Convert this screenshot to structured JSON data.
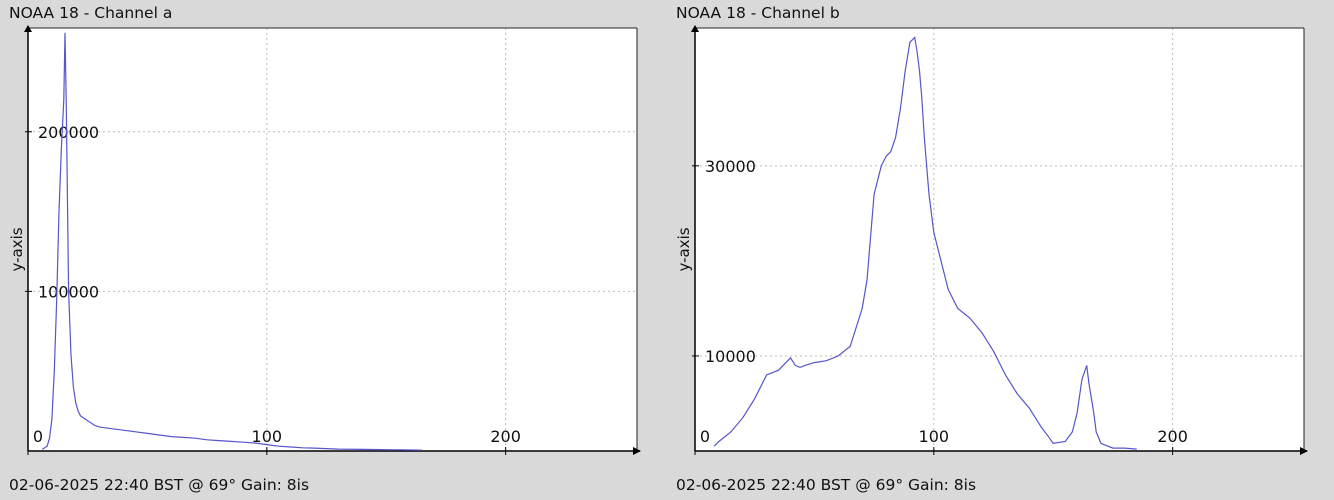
{
  "panels": [
    {
      "title": "NOAA 18 - Channel a",
      "footer": "02-06-2025 22:40 BST @ 69° Gain: 8is"
    },
    {
      "title": "NOAA 18 - Channel b",
      "footer": "02-06-2025 22:40 BST @ 69° Gain: 8is"
    }
  ],
  "chart_data": [
    {
      "type": "line",
      "title": "NOAA 18 - Channel a",
      "xlabel": "",
      "ylabel": "y-axis",
      "xlim": [
        0,
        255
      ],
      "ylim": [
        0,
        265000
      ],
      "xticks": [
        0,
        100,
        200
      ],
      "yticks": [
        100000,
        200000
      ],
      "x_tick_labels": [
        "0",
        "100",
        "200"
      ],
      "y_tick_labels": [
        "100000",
        "200000"
      ],
      "grid": true,
      "line_color": "#5555cc",
      "series": [
        {
          "x": [
            6,
            8,
            9,
            10,
            11,
            12,
            13,
            14,
            15,
            15.5,
            16,
            16.5,
            17,
            18,
            19,
            20,
            21,
            22,
            23,
            24,
            25,
            28,
            30,
            35,
            40,
            45,
            50,
            55,
            60,
            65,
            70,
            75,
            80,
            85,
            90,
            95,
            100,
            105,
            110,
            115,
            120,
            125,
            130,
            140,
            150,
            160,
            165
          ],
          "y": [
            1000,
            3000,
            8000,
            20000,
            50000,
            95000,
            150000,
            190000,
            220000,
            262000,
            220000,
            160000,
            100000,
            60000,
            40000,
            30000,
            25000,
            22000,
            21000,
            20000,
            19000,
            16000,
            15000,
            14000,
            13000,
            12000,
            11000,
            10000,
            9000,
            8500,
            8000,
            7000,
            6500,
            6000,
            5500,
            5000,
            4000,
            3000,
            2500,
            2000,
            1800,
            1500,
            1200,
            1000,
            800,
            600,
            500
          ]
        }
      ]
    },
    {
      "type": "line",
      "title": "NOAA 18 - Channel b",
      "xlabel": "",
      "ylabel": "y-axis",
      "xlim": [
        0,
        255
      ],
      "ylim": [
        0,
        44500
      ],
      "xticks": [
        0,
        100,
        200
      ],
      "yticks": [
        10000,
        30000
      ],
      "x_tick_labels": [
        "0",
        "100",
        "200"
      ],
      "y_tick_labels": [
        "10000",
        "30000"
      ],
      "grid": true,
      "line_color": "#5555cc",
      "series": [
        {
          "x": [
            8,
            10,
            15,
            20,
            25,
            30,
            35,
            40,
            42,
            44,
            46,
            50,
            55,
            60,
            65,
            70,
            72,
            75,
            78,
            80,
            82,
            84,
            86,
            88,
            90,
            92,
            93,
            94,
            95,
            96,
            98,
            100,
            103,
            106,
            110,
            115,
            120,
            125,
            130,
            135,
            140,
            145,
            148,
            150,
            155,
            158,
            160,
            162,
            164,
            165,
            167,
            168,
            170,
            175,
            180,
            185
          ],
          "y": [
            500,
            1000,
            2000,
            3500,
            5500,
            8000,
            8500,
            9800,
            9000,
            8800,
            9000,
            9300,
            9500,
            10000,
            11000,
            15000,
            18000,
            27000,
            30000,
            31000,
            31500,
            33000,
            36000,
            40000,
            43000,
            43500,
            42000,
            40000,
            37000,
            33000,
            27000,
            23000,
            20000,
            17000,
            15000,
            14000,
            12500,
            10500,
            8000,
            6000,
            4500,
            2500,
            1500,
            800,
            1000,
            2000,
            4000,
            7500,
            9000,
            7000,
            4000,
            2000,
            800,
            300,
            300,
            200
          ]
        }
      ]
    }
  ]
}
